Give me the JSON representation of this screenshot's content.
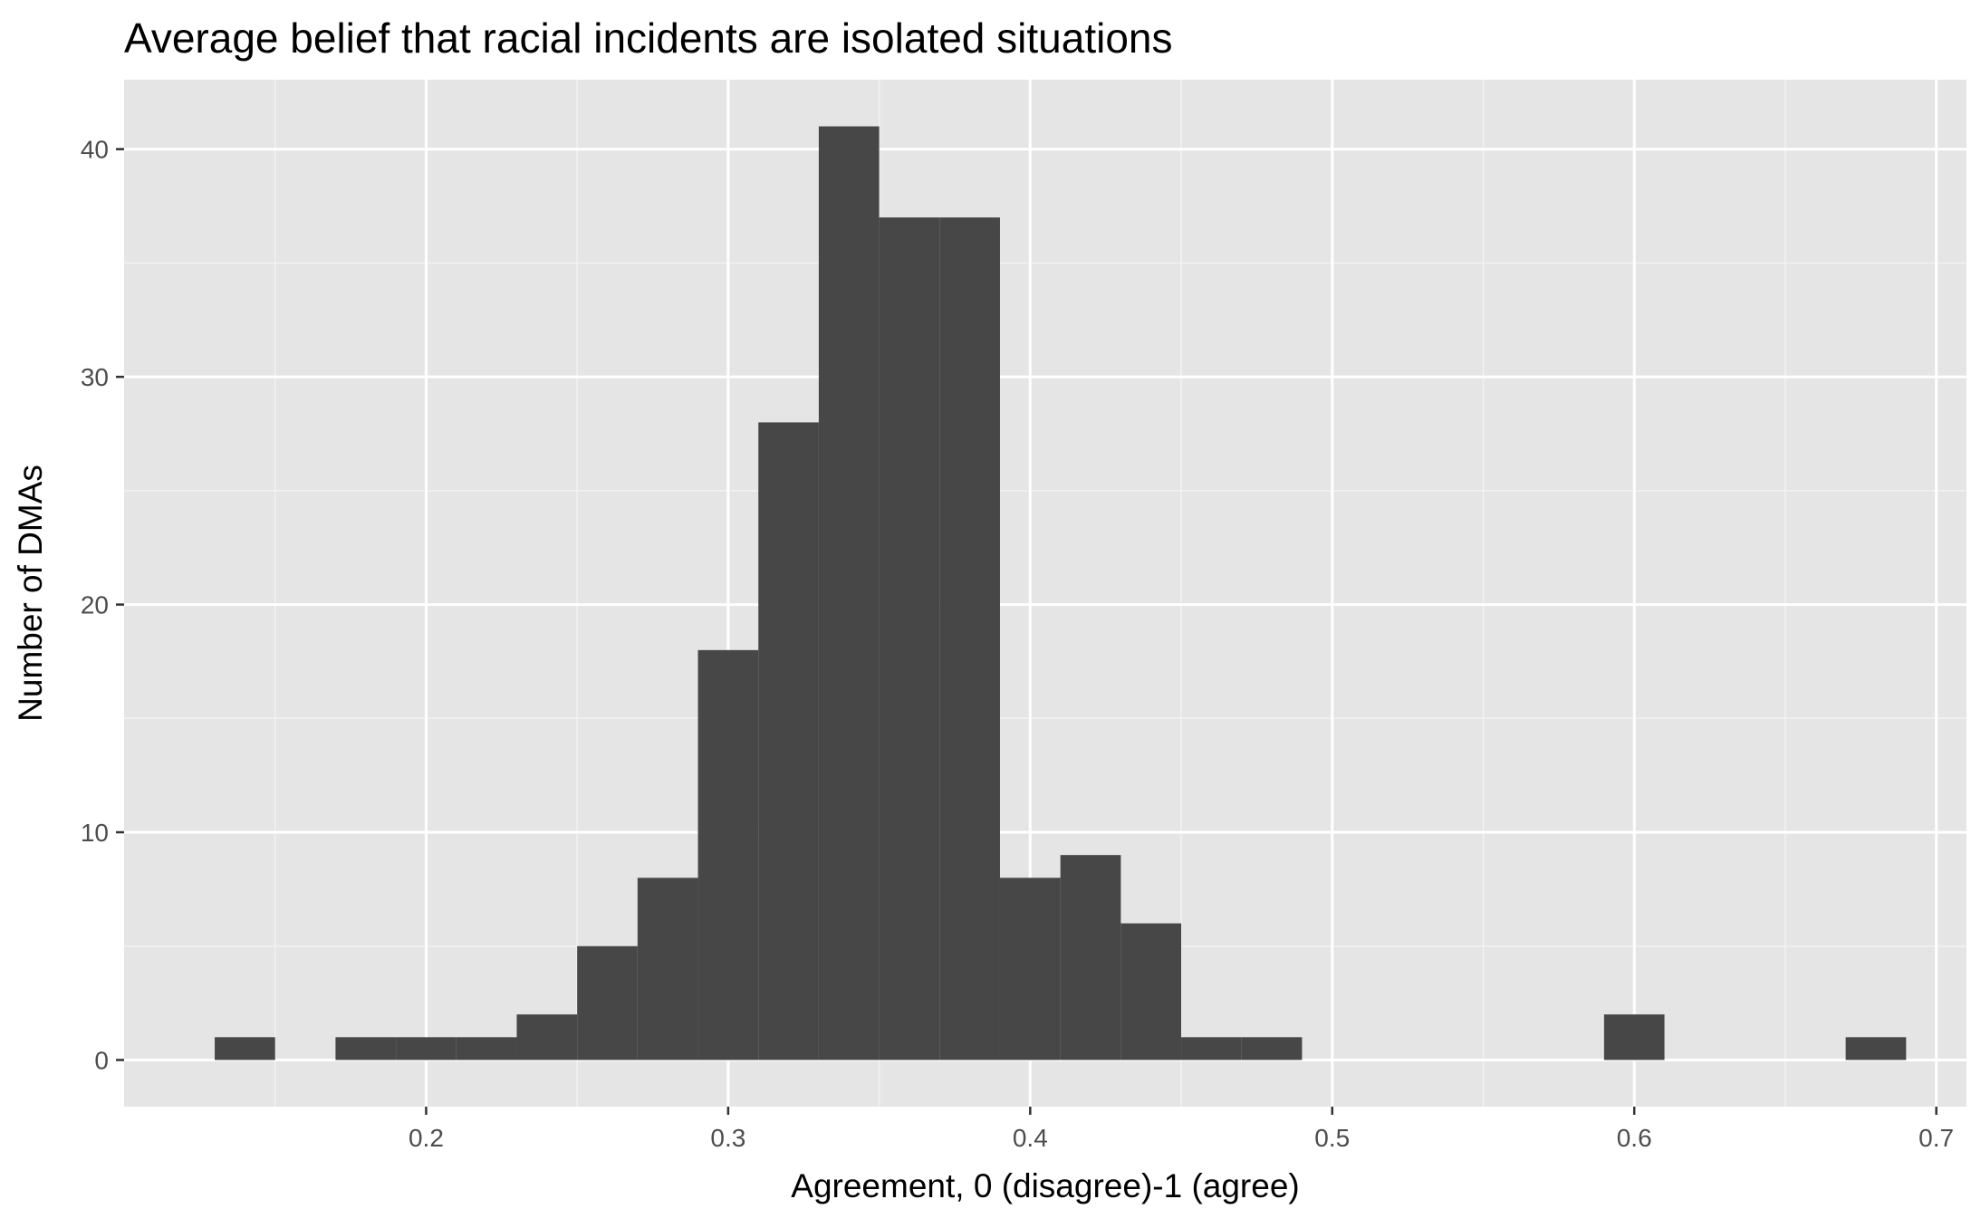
{
  "chart_data": {
    "type": "bar",
    "title": "Average belief that racial incidents are isolated situations",
    "xlabel": "Agreement, 0 (disagree)-1 (agree)",
    "ylabel": "Number of DMAs",
    "xlim": [
      0.1,
      0.71
    ],
    "ylim": [
      -2.05,
      43.05
    ],
    "x_ticks": [
      0.2,
      0.3,
      0.4,
      0.5,
      0.6,
      0.7
    ],
    "x_tick_labels": [
      "0.2",
      "0.3",
      "0.4",
      "0.5",
      "0.6",
      "0.7"
    ],
    "y_ticks": [
      0,
      10,
      20,
      30,
      40
    ],
    "y_tick_labels": [
      "0",
      "10",
      "20",
      "30",
      "40"
    ],
    "grid": true,
    "bin_width": 0.02,
    "bins": [
      {
        "start": 0.13,
        "end": 0.15,
        "count": 1
      },
      {
        "start": 0.15,
        "end": 0.17,
        "count": 0
      },
      {
        "start": 0.17,
        "end": 0.19,
        "count": 1
      },
      {
        "start": 0.19,
        "end": 0.21,
        "count": 1
      },
      {
        "start": 0.21,
        "end": 0.23,
        "count": 1
      },
      {
        "start": 0.23,
        "end": 0.25,
        "count": 2
      },
      {
        "start": 0.25,
        "end": 0.27,
        "count": 5
      },
      {
        "start": 0.27,
        "end": 0.29,
        "count": 8
      },
      {
        "start": 0.29,
        "end": 0.31,
        "count": 18
      },
      {
        "start": 0.31,
        "end": 0.33,
        "count": 28
      },
      {
        "start": 0.33,
        "end": 0.35,
        "count": 41
      },
      {
        "start": 0.35,
        "end": 0.37,
        "count": 37
      },
      {
        "start": 0.37,
        "end": 0.39,
        "count": 37
      },
      {
        "start": 0.39,
        "end": 0.41,
        "count": 8
      },
      {
        "start": 0.41,
        "end": 0.43,
        "count": 9
      },
      {
        "start": 0.43,
        "end": 0.45,
        "count": 6
      },
      {
        "start": 0.45,
        "end": 0.47,
        "count": 1
      },
      {
        "start": 0.47,
        "end": 0.49,
        "count": 1
      },
      {
        "start": 0.49,
        "end": 0.51,
        "count": 0
      },
      {
        "start": 0.51,
        "end": 0.53,
        "count": 0
      },
      {
        "start": 0.53,
        "end": 0.55,
        "count": 0
      },
      {
        "start": 0.55,
        "end": 0.57,
        "count": 0
      },
      {
        "start": 0.57,
        "end": 0.59,
        "count": 0
      },
      {
        "start": 0.59,
        "end": 0.61,
        "count": 2
      },
      {
        "start": 0.61,
        "end": 0.63,
        "count": 0
      },
      {
        "start": 0.63,
        "end": 0.65,
        "count": 0
      },
      {
        "start": 0.65,
        "end": 0.67,
        "count": 0
      },
      {
        "start": 0.67,
        "end": 0.69,
        "count": 1
      }
    ],
    "colors": {
      "panel_background": "#e5e5e5",
      "grid_major": "#ffffff",
      "grid_minor": "#f2f2f2",
      "bar_fill": "#474747",
      "tick_text": "#4d4d4d",
      "tick_mark": "#333333",
      "title_text": "#000000"
    }
  }
}
